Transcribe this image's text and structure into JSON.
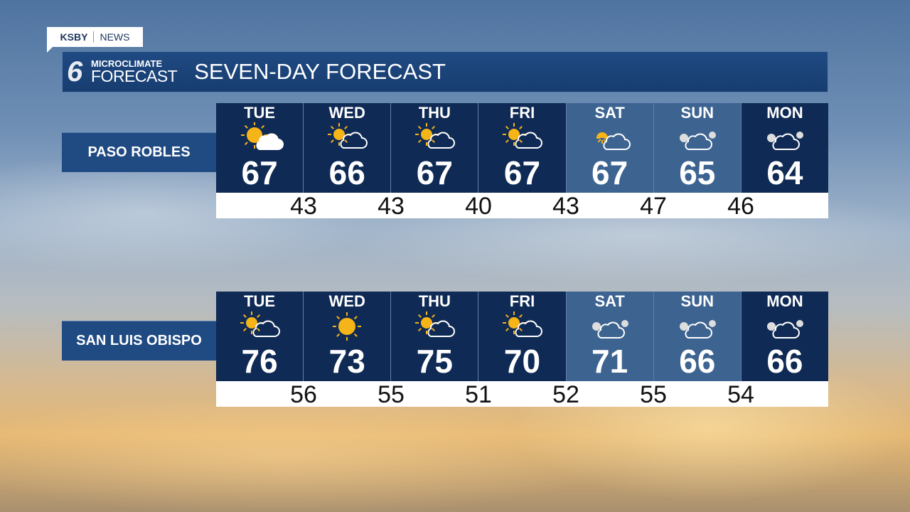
{
  "badge": {
    "station": "KSBY",
    "section": "NEWS"
  },
  "header": {
    "logo_top": "MICROCLIMATE",
    "logo_bottom": "FORECAST",
    "logo_mark": "6",
    "title": "SEVEN-DAY FORECAST"
  },
  "colors": {
    "dark": "#0f2a55",
    "weekend": "#3d6391",
    "low_bar": "#ffffff",
    "sun": "#f5b417"
  },
  "days": [
    "TUE",
    "WED",
    "THU",
    "FRI",
    "SAT",
    "SUN",
    "MON"
  ],
  "locations": [
    {
      "name": "PASO ROBLES",
      "highs": [
        "67",
        "66",
        "67",
        "67",
        "67",
        "65",
        "64"
      ],
      "lows": [
        "43",
        "43",
        "40",
        "43",
        "47",
        "46"
      ],
      "icons": [
        "sun-filled-cloud",
        "mostly-sunny",
        "mostly-sunny",
        "mostly-sunny",
        "partly-cloudy",
        "cloudy",
        "cloudy"
      ]
    },
    {
      "name": "SAN LUIS OBISPO",
      "highs": [
        "76",
        "73",
        "75",
        "70",
        "71",
        "66",
        "66"
      ],
      "lows": [
        "56",
        "55",
        "51",
        "52",
        "55",
        "54"
      ],
      "icons": [
        "mostly-sunny",
        "sunny",
        "mostly-sunny",
        "mostly-sunny",
        "cloudy",
        "cloudy",
        "cloudy"
      ]
    }
  ]
}
